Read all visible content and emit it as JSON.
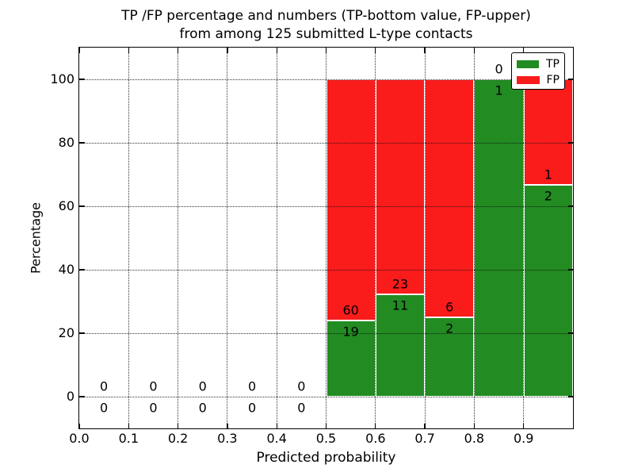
{
  "figure": {
    "title_line1": "TP /FP percentage and numbers (TP-bottom value, FP-upper)",
    "title_line2": "from among 125 submitted L-type contacts",
    "xlabel": "Predicted probability",
    "ylabel": "Percentage"
  },
  "legend": {
    "position": "upper right",
    "items": [
      {
        "label": "TP",
        "color": "#228b22"
      },
      {
        "label": "FP",
        "color": "#fa1b1b"
      }
    ]
  },
  "chart_data": {
    "type": "bar",
    "stacked": true,
    "title": "TP /FP percentage and numbers (TP-bottom value, FP-upper) from among 125 submitted L-type contacts",
    "xlabel": "Predicted probability",
    "ylabel": "Percentage",
    "xlim": [
      0.0,
      1.0
    ],
    "ylim": [
      -10,
      110
    ],
    "x_ticks": [
      "0.0",
      "0.1",
      "0.2",
      "0.3",
      "0.4",
      "0.5",
      "0.6",
      "0.7",
      "0.8",
      "0.9"
    ],
    "y_ticks": [
      "0",
      "20",
      "40",
      "60",
      "80",
      "100"
    ],
    "grid": true,
    "legend_position": "upper right",
    "bin_width": 0.1,
    "total_submitted": 125,
    "series": [
      {
        "name": "TP",
        "color": "#228b22"
      },
      {
        "name": "FP",
        "color": "#fa1b1b"
      }
    ],
    "bins": [
      {
        "range": [
          0.0,
          0.1
        ],
        "tp": 0,
        "fp": 0,
        "tp_pct": 0,
        "fp_pct": 0
      },
      {
        "range": [
          0.1,
          0.2
        ],
        "tp": 0,
        "fp": 0,
        "tp_pct": 0,
        "fp_pct": 0
      },
      {
        "range": [
          0.2,
          0.3
        ],
        "tp": 0,
        "fp": 0,
        "tp_pct": 0,
        "fp_pct": 0
      },
      {
        "range": [
          0.3,
          0.4
        ],
        "tp": 0,
        "fp": 0,
        "tp_pct": 0,
        "fp_pct": 0
      },
      {
        "range": [
          0.4,
          0.5
        ],
        "tp": 0,
        "fp": 0,
        "tp_pct": 0,
        "fp_pct": 0
      },
      {
        "range": [
          0.5,
          0.6
        ],
        "tp": 19,
        "fp": 60,
        "tp_pct": 24.05,
        "fp_pct": 75.95
      },
      {
        "range": [
          0.6,
          0.7
        ],
        "tp": 11,
        "fp": 23,
        "tp_pct": 32.35,
        "fp_pct": 67.65
      },
      {
        "range": [
          0.7,
          0.8
        ],
        "tp": 2,
        "fp": 6,
        "tp_pct": 25.0,
        "fp_pct": 75.0
      },
      {
        "range": [
          0.8,
          0.9
        ],
        "tp": 1,
        "fp": 0,
        "tp_pct": 100.0,
        "fp_pct": 0.0
      },
      {
        "range": [
          0.9,
          1.0
        ],
        "tp": 2,
        "fp": 1,
        "tp_pct": 66.67,
        "fp_pct": 33.33
      }
    ]
  }
}
